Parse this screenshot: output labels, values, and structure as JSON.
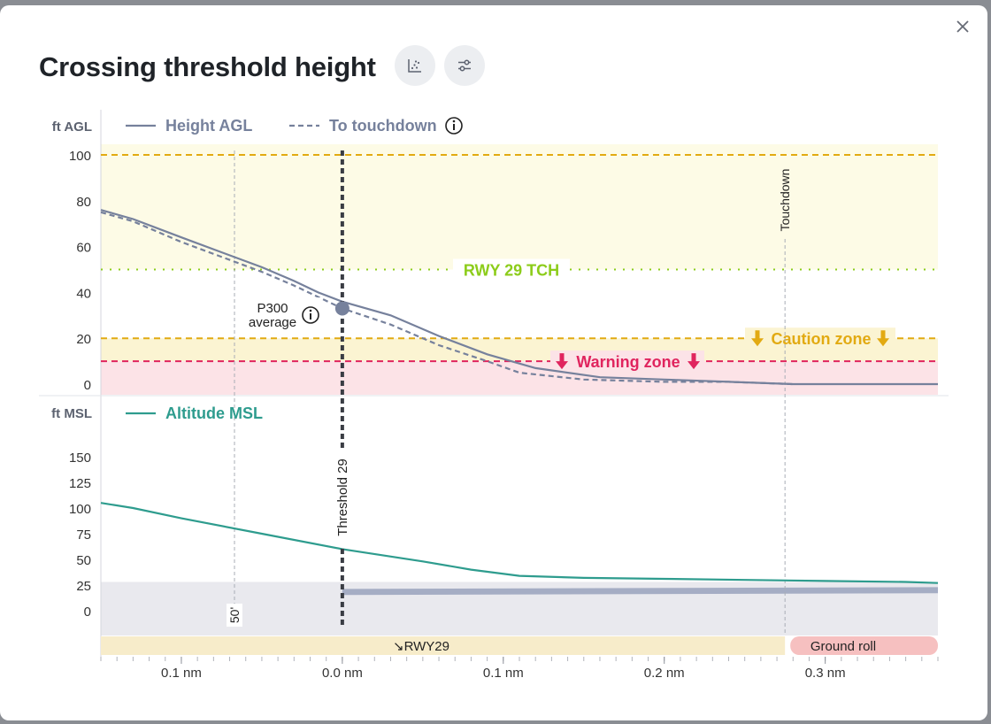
{
  "dialog": {
    "title": "Crossing threshold height"
  },
  "toolbar": {
    "scatter_icon": "scatter-plot-icon",
    "settings_icon": "sliders-icon",
    "close_icon": "close-icon"
  },
  "colors": {
    "agl_line": "#76819c",
    "msl_line": "#2e9c8e",
    "caution": "#e2aa12",
    "warning": "#e0245e",
    "tch": "#8ccc1a",
    "terrain": "#e9e9ee",
    "runway_fill": "#a5adc4",
    "runway_bar": "#f7ecca",
    "ground_roll": "#f6c0c0"
  },
  "chart_data": [
    {
      "type": "line",
      "ylabel": "ft AGL",
      "ylim": [
        0,
        100
      ],
      "yticks": [
        0,
        20,
        40,
        60,
        80,
        100
      ],
      "legend": {
        "height_agl": "Height AGL",
        "to_touchdown": "To touchdown"
      },
      "series": [
        {
          "name": "Height AGL",
          "x": [
            -0.15,
            -0.13,
            -0.1,
            -0.05,
            -0.03,
            -0.015,
            0.0,
            0.03,
            0.06,
            0.09,
            0.12,
            0.16,
            0.2,
            0.24,
            0.28,
            0.32,
            0.37
          ],
          "y": [
            76,
            72,
            64,
            51,
            45,
            40,
            36,
            30,
            21,
            13,
            7,
            3,
            2,
            1,
            0,
            0,
            0
          ]
        },
        {
          "name": "To touchdown",
          "x": [
            -0.15,
            -0.13,
            -0.1,
            -0.05,
            -0.03,
            0.0,
            0.03,
            0.06,
            0.09,
            0.11,
            0.15,
            0.2,
            0.24,
            0.28
          ],
          "y": [
            75,
            71,
            62,
            49,
            43,
            33,
            26,
            17,
            10,
            5,
            2,
            1,
            1,
            0
          ]
        }
      ],
      "reference_lines": [
        {
          "y": 100,
          "style": "dashed",
          "color": "caution"
        },
        {
          "y": 50,
          "label": "RWY 29 TCH",
          "style": "dotted",
          "color": "tch"
        },
        {
          "y": 20,
          "label": "Caution zone",
          "style": "dashed",
          "color": "caution"
        },
        {
          "y": 10,
          "label": "Warning zone",
          "style": "dashed",
          "color": "warning"
        }
      ],
      "marker": {
        "label_line1": "P300",
        "label_line2": "average",
        "x": 0.0,
        "y": 33
      }
    },
    {
      "type": "line",
      "ylabel": "ft MSL",
      "ylim": [
        0,
        150
      ],
      "yticks": [
        0,
        25,
        50,
        75,
        100,
        125,
        150
      ],
      "legend": {
        "altitude_msl": "Altitude MSL"
      },
      "series": [
        {
          "name": "Altitude MSL",
          "x": [
            -0.15,
            -0.13,
            -0.1,
            -0.05,
            0.0,
            0.05,
            0.08,
            0.11,
            0.15,
            0.2,
            0.25,
            0.3,
            0.35,
            0.37
          ],
          "y": [
            105,
            100,
            90,
            75,
            60,
            48,
            40,
            34,
            32,
            31,
            30,
            29,
            28,
            27
          ]
        }
      ],
      "terrain_ft": 28,
      "runway_ft": 23
    }
  ],
  "x_axis": {
    "ticks": [
      "0.1 nm",
      "0.0 nm",
      "0.1 nm",
      "0.2 nm",
      "0.3 nm"
    ],
    "tick_values": [
      -0.1,
      0.0,
      0.1,
      0.2,
      0.3
    ],
    "range": [
      -0.15,
      0.37
    ]
  },
  "verticals": {
    "fifty": {
      "label": "50'",
      "x": -0.067
    },
    "threshold": {
      "label": "Threshold 29",
      "x": 0.0
    },
    "touchdown": {
      "label": "Touchdown",
      "x": 0.275
    }
  },
  "runway_bar": {
    "label": "↘RWY29",
    "ground_roll": "Ground roll"
  }
}
